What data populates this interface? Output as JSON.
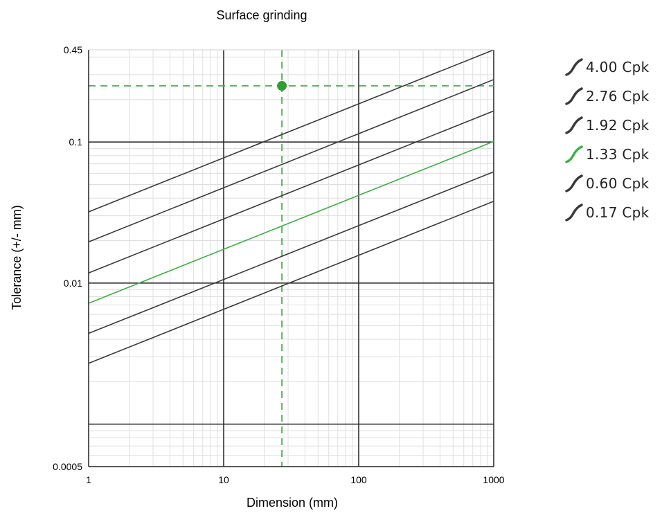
{
  "chart_data": {
    "type": "line",
    "title": "Surface grinding",
    "xlabel": "Dimension (mm)",
    "ylabel": "Tolerance (+/- mm)",
    "x_scale": "log",
    "y_scale": "log",
    "xlim": [
      1,
      1000
    ],
    "ylim": [
      0.0005,
      0.45
    ],
    "x_ticks": [
      "1",
      "10",
      "100",
      "1000"
    ],
    "y_ticks": [
      "0.0005",
      "0.01",
      "0.1",
      "0.45"
    ],
    "y_major_lines": [
      0.001,
      0.01,
      0.1
    ],
    "grid": true,
    "legend_position": "right",
    "series": [
      {
        "name": "4.00 Cpk",
        "color": "#3a3a3a",
        "x": [
          1,
          1000
        ],
        "y": [
          0.032,
          0.45
        ]
      },
      {
        "name": "2.76 Cpk",
        "color": "#3a3a3a",
        "x": [
          1,
          1000
        ],
        "y": [
          0.0196,
          0.277
        ]
      },
      {
        "name": "1.92 Cpk",
        "color": "#3a3a3a",
        "x": [
          1,
          1000
        ],
        "y": [
          0.0118,
          0.166
        ]
      },
      {
        "name": "1.33 Cpk",
        "color": "#3cb043",
        "x": [
          1,
          1000
        ],
        "y": [
          0.0072,
          0.101
        ]
      },
      {
        "name": "0.60 Cpk",
        "color": "#3a3a3a",
        "x": [
          1,
          1000
        ],
        "y": [
          0.0044,
          0.0615
        ]
      },
      {
        "name": "0.17 Cpk",
        "color": "#3a3a3a",
        "x": [
          1,
          1000
        ],
        "y": [
          0.0027,
          0.038
        ]
      }
    ],
    "highlight_point": {
      "x": 27,
      "y": 0.25,
      "color": "#2e9e2e"
    },
    "reference_lines": {
      "x": 27,
      "y": 0.25,
      "color": "#3cb043",
      "style": "dashed"
    }
  }
}
